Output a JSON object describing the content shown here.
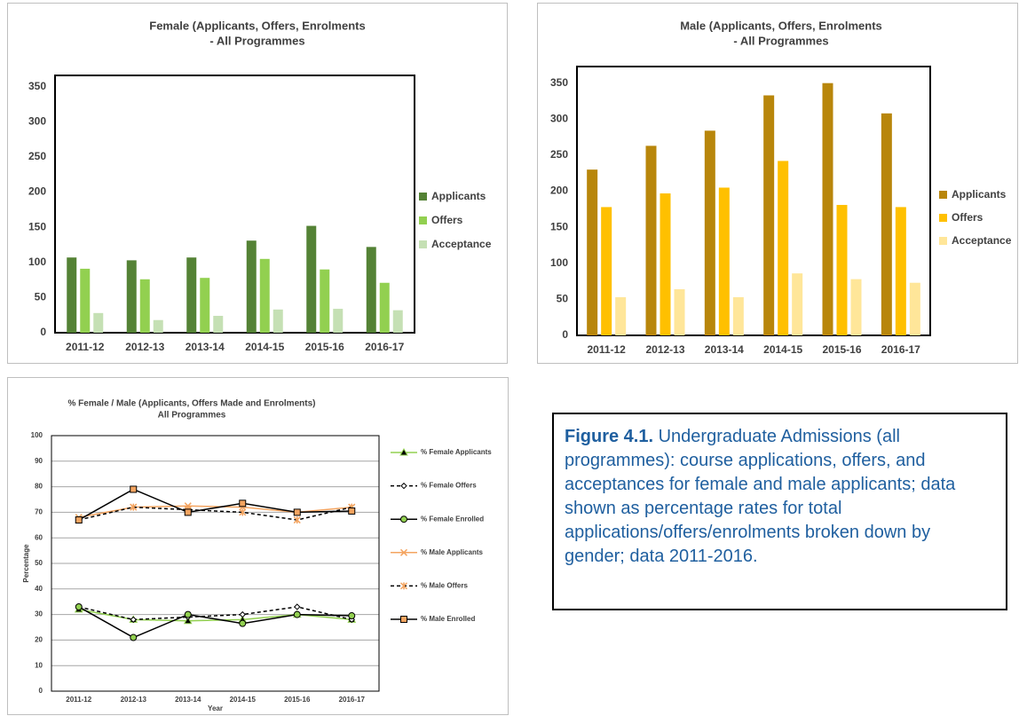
{
  "chart_data": [
    {
      "type": "bar",
      "title": [
        "Female (Applicants, Offers, Enrolments",
        "- All Programmes"
      ],
      "categories": [
        "2011-12",
        "2012-13",
        "2013-14",
        "2014-15",
        "2015-16",
        "2016-17"
      ],
      "series": [
        {
          "name": "Applicants",
          "color": "#548235",
          "values": [
            107,
            103,
            107,
            131,
            152,
            122
          ]
        },
        {
          "name": "Offers",
          "color": "#92d050",
          "values": [
            91,
            76,
            78,
            105,
            90,
            71
          ]
        },
        {
          "name": "Acceptance",
          "color": "#c5e0b4",
          "values": [
            28,
            18,
            24,
            33,
            34,
            32
          ]
        }
      ],
      "ylim": [
        0,
        366
      ],
      "yticks": [
        0,
        50,
        100,
        150,
        200,
        250,
        300,
        350
      ],
      "grid": false,
      "legend": "right"
    },
    {
      "type": "bar",
      "title": [
        "Male (Applicants, Offers, Enrolments",
        "- All Programmes"
      ],
      "categories": [
        "2011-12",
        "2012-13",
        "2013-14",
        "2014-15",
        "2015-16",
        "2016-17"
      ],
      "series": [
        {
          "name": "Applicants",
          "color": "#b8860b",
          "values": [
            230,
            263,
            284,
            333,
            350,
            308
          ]
        },
        {
          "name": "Offers",
          "color": "#ffc000",
          "values": [
            178,
            197,
            205,
            242,
            181,
            178
          ]
        },
        {
          "name": "Acceptance",
          "color": "#ffe699",
          "values": [
            53,
            64,
            53,
            86,
            78,
            73
          ]
        }
      ],
      "ylim": [
        0,
        373
      ],
      "yticks": [
        0,
        50,
        100,
        150,
        200,
        250,
        300,
        350
      ],
      "grid": false,
      "legend": "right"
    },
    {
      "type": "line",
      "title": [
        "% Female / Male (Applicants, Offers Made and Enrolments)",
        "All Programmes"
      ],
      "x_label": "Year",
      "y_label": "Percentage",
      "categories": [
        "2011-12",
        "2012-13",
        "2013-14",
        "2014-15",
        "2015-16",
        "2016-17"
      ],
      "series": [
        {
          "name": "% Female Applicants",
          "color": "#92d050",
          "marker": "triangle",
          "marker_color": "#000000",
          "dashed": false,
          "values": [
            32,
            28,
            27.5,
            28,
            30,
            28
          ]
        },
        {
          "name": "% Female Offers",
          "color": "#000000",
          "marker": "diamond",
          "marker_color": "#ffffff",
          "dashed": true,
          "values": [
            33,
            28,
            29,
            30,
            33,
            28
          ]
        },
        {
          "name": "% Female Enrolled",
          "color": "#000000",
          "marker": "circle",
          "marker_color": "#92d050",
          "dashed": false,
          "values": [
            33,
            21,
            30,
            26.5,
            30,
            29.5
          ]
        },
        {
          "name": "% Male Applicants",
          "color": "#f4a460",
          "marker": "x",
          "marker_color": "#000000",
          "dashed": false,
          "values": [
            68,
            72,
            72.5,
            72,
            70,
            72
          ]
        },
        {
          "name": "% Male Offers",
          "color": "#000000",
          "marker": "asterisk",
          "marker_color": "#f4a460",
          "dashed": true,
          "values": [
            67,
            72,
            71,
            70,
            67,
            72
          ]
        },
        {
          "name": "% Male Enrolled",
          "color": "#000000",
          "marker": "square",
          "marker_color": "#f4a460",
          "dashed": false,
          "values": [
            67,
            79,
            70,
            73.5,
            70,
            70.5
          ]
        }
      ],
      "ylim": [
        0,
        100
      ],
      "yticks": [
        0,
        10,
        20,
        30,
        40,
        50,
        60,
        70,
        80,
        90,
        100
      ],
      "grid": true,
      "legend": "right"
    }
  ],
  "caption": {
    "label": "Figure 4.1.",
    "text": "Undergraduate Admissions (all programmes): course applications, offers, and acceptances for female and male applicants; data shown as percentage rates for total applications/offers/enrolments broken down by gender; data 2011-2016."
  }
}
